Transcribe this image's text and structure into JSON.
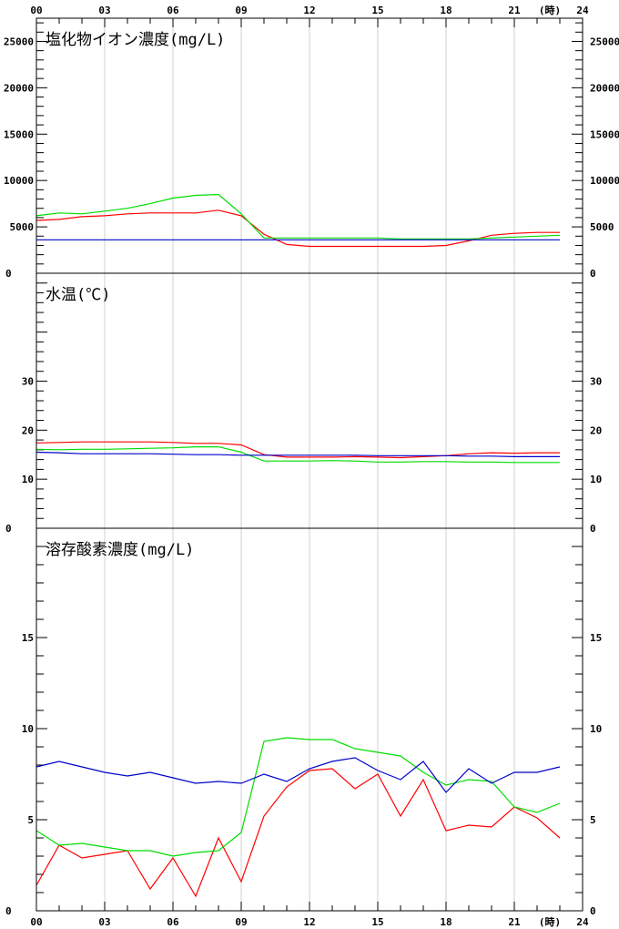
{
  "colors": {
    "red": "#ff0000",
    "green": "#00dd00",
    "blue": "#0000cc",
    "grid": "#d0d0d0",
    "axis": "#000000"
  },
  "x_axis": {
    "range": [
      0,
      24
    ],
    "top_labels": [
      "00",
      "03",
      "06",
      "09",
      "12",
      "15",
      "18",
      "21",
      "24"
    ],
    "bottom_labels": [
      "00",
      "03",
      "06",
      "09",
      "12",
      "15",
      "18",
      "21",
      "24"
    ],
    "unit_label": "(時)"
  },
  "chart_data": [
    {
      "type": "line",
      "title": "塩化物イオン濃度(mg/L)",
      "xlabel": "",
      "ylabel": "",
      "ylim": [
        0,
        27500
      ],
      "yticks": [
        "0",
        "5000",
        "10000",
        "15000",
        "20000",
        "25000"
      ],
      "grid": true,
      "series": [
        {
          "color": "red",
          "x": [
            0,
            1,
            2,
            3,
            4,
            5,
            6,
            7,
            8,
            9,
            10,
            11,
            12,
            13,
            14,
            15,
            16,
            17,
            18,
            19,
            20,
            21,
            22,
            23
          ],
          "values": [
            5700,
            5800,
            6100,
            6200,
            6400,
            6500,
            6500,
            6500,
            6800,
            6200,
            4200,
            3100,
            2900,
            2900,
            2900,
            2900,
            2900,
            2900,
            3000,
            3500,
            4100,
            4300,
            4400,
            4400
          ]
        },
        {
          "color": "green",
          "x": [
            0,
            1,
            2,
            3,
            4,
            5,
            6,
            7,
            8,
            9,
            10,
            11,
            12,
            13,
            14,
            15,
            16,
            17,
            18,
            19,
            20,
            21,
            22,
            23
          ],
          "values": [
            6200,
            6500,
            6400,
            6700,
            7000,
            7500,
            8100,
            8400,
            8500,
            6400,
            3800,
            3800,
            3800,
            3800,
            3800,
            3800,
            3700,
            3700,
            3700,
            3700,
            3800,
            3900,
            4000,
            4100
          ]
        },
        {
          "color": "blue",
          "x": [
            0,
            1,
            2,
            3,
            4,
            5,
            6,
            7,
            8,
            9,
            10,
            11,
            12,
            13,
            14,
            15,
            16,
            17,
            18,
            19,
            20,
            21,
            22,
            23
          ],
          "values": [
            3600,
            3600,
            3600,
            3600,
            3600,
            3600,
            3600,
            3600,
            3600,
            3600,
            3600,
            3600,
            3600,
            3600,
            3600,
            3600,
            3600,
            3600,
            3600,
            3600,
            3600,
            3600,
            3600,
            3600
          ]
        }
      ]
    },
    {
      "type": "line",
      "title": "水温(℃)",
      "xlabel": "",
      "ylabel": "",
      "ylim": [
        0,
        52
      ],
      "yticks": [
        "0",
        "10",
        "20",
        "30"
      ],
      "grid": true,
      "series": [
        {
          "color": "red",
          "x": [
            0,
            1,
            2,
            3,
            4,
            5,
            6,
            7,
            8,
            9,
            10,
            11,
            12,
            13,
            14,
            15,
            16,
            17,
            18,
            19,
            20,
            21,
            22,
            23
          ],
          "values": [
            17.4,
            17.5,
            17.6,
            17.6,
            17.6,
            17.6,
            17.5,
            17.3,
            17.3,
            17.0,
            15.0,
            14.5,
            14.5,
            14.5,
            14.6,
            14.5,
            14.4,
            14.6,
            14.8,
            15.2,
            15.4,
            15.3,
            15.4,
            15.4
          ]
        },
        {
          "color": "green",
          "x": [
            0,
            1,
            2,
            3,
            4,
            5,
            6,
            7,
            8,
            9,
            10,
            11,
            12,
            13,
            14,
            15,
            16,
            17,
            18,
            19,
            20,
            21,
            22,
            23
          ],
          "values": [
            16.1,
            16.0,
            16.1,
            16.1,
            16.2,
            16.3,
            16.4,
            16.6,
            16.6,
            15.5,
            13.7,
            13.7,
            13.7,
            13.8,
            13.7,
            13.5,
            13.5,
            13.6,
            13.6,
            13.5,
            13.5,
            13.4,
            13.4,
            13.4
          ]
        },
        {
          "color": "blue",
          "x": [
            0,
            1,
            2,
            3,
            4,
            5,
            6,
            7,
            8,
            9,
            10,
            11,
            12,
            13,
            14,
            15,
            16,
            17,
            18,
            19,
            20,
            21,
            22,
            23
          ],
          "values": [
            15.5,
            15.4,
            15.2,
            15.2,
            15.2,
            15.2,
            15.1,
            15.0,
            15.0,
            14.9,
            14.9,
            14.9,
            14.9,
            14.9,
            14.9,
            14.8,
            14.8,
            14.8,
            14.8,
            14.7,
            14.7,
            14.6,
            14.6,
            14.6
          ]
        }
      ]
    },
    {
      "type": "line",
      "title": "溶存酸素濃度(mg/L)",
      "xlabel": "",
      "ylabel": "",
      "ylim": [
        0,
        21
      ],
      "yticks": [
        "0",
        "5",
        "10",
        "15"
      ],
      "grid": true,
      "series": [
        {
          "color": "red",
          "x": [
            0,
            1,
            2,
            3,
            4,
            5,
            6,
            7,
            8,
            9,
            10,
            11,
            12,
            13,
            14,
            15,
            16,
            17,
            18,
            19,
            20,
            21,
            22,
            23
          ],
          "values": [
            1.4,
            3.6,
            2.9,
            3.1,
            3.3,
            1.2,
            2.9,
            0.8,
            4.0,
            1.6,
            5.2,
            6.8,
            7.7,
            7.8,
            6.7,
            7.5,
            5.2,
            7.2,
            4.4,
            4.7,
            4.6,
            5.7,
            5.1,
            4.0
          ]
        },
        {
          "color": "green",
          "x": [
            0,
            1,
            2,
            3,
            4,
            5,
            6,
            7,
            8,
            9,
            10,
            11,
            12,
            13,
            14,
            15,
            16,
            17,
            18,
            19,
            20,
            21,
            22,
            23
          ],
          "values": [
            4.4,
            3.6,
            3.7,
            3.5,
            3.3,
            3.3,
            3.0,
            3.2,
            3.3,
            4.3,
            9.3,
            9.5,
            9.4,
            9.4,
            8.9,
            8.7,
            8.5,
            7.6,
            6.9,
            7.2,
            7.1,
            5.7,
            5.4,
            5.9
          ]
        },
        {
          "color": "blue",
          "x": [
            0,
            1,
            2,
            3,
            4,
            5,
            6,
            7,
            8,
            9,
            10,
            11,
            12,
            13,
            14,
            15,
            16,
            17,
            18,
            19,
            20,
            21,
            22,
            23
          ],
          "values": [
            7.9,
            8.2,
            7.9,
            7.6,
            7.4,
            7.6,
            7.3,
            7.0,
            7.1,
            7.0,
            7.5,
            7.1,
            7.8,
            8.2,
            8.4,
            7.7,
            7.2,
            8.2,
            6.5,
            7.8,
            7.0,
            7.6,
            7.6,
            7.9
          ]
        }
      ]
    }
  ]
}
